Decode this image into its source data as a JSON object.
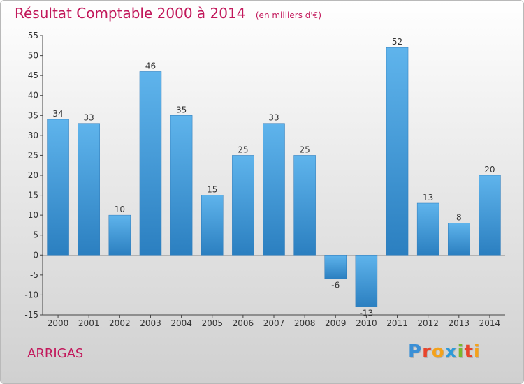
{
  "header": {
    "title": "Résultat Comptable 2000 à 2014",
    "subtitle": "(en milliers d'€)"
  },
  "commune": "ARRIGAS",
  "logo": {
    "text": "Proxiti",
    "letter_colors": [
      "#3a8fd6",
      "#e8452c",
      "#f4a21b",
      "#2e9ad8",
      "#7ab82e",
      "#e8452c",
      "#f4a21b"
    ]
  },
  "colors": {
    "bar_light": "#5fb4ec",
    "bar_dark": "#2b7fc0",
    "title": "#c2185b",
    "axis": "#444444"
  },
  "chart_data": {
    "type": "bar",
    "title": "Résultat Comptable 2000 à 2014",
    "subtitle": "(en milliers d'€)",
    "xlabel": "",
    "ylabel": "",
    "categories": [
      "2000",
      "2001",
      "2002",
      "2003",
      "2004",
      "2005",
      "2006",
      "2007",
      "2008",
      "2009",
      "2010",
      "2011",
      "2012",
      "2013",
      "2014"
    ],
    "values": [
      34,
      33,
      10,
      46,
      35,
      15,
      25,
      33,
      25,
      -6,
      -13,
      52,
      13,
      8,
      20
    ],
    "ylim": [
      -15,
      55
    ],
    "yticks": [
      -15,
      -10,
      -5,
      0,
      5,
      10,
      15,
      20,
      25,
      30,
      35,
      40,
      45,
      50,
      55
    ],
    "grid": false,
    "legend": "none"
  }
}
